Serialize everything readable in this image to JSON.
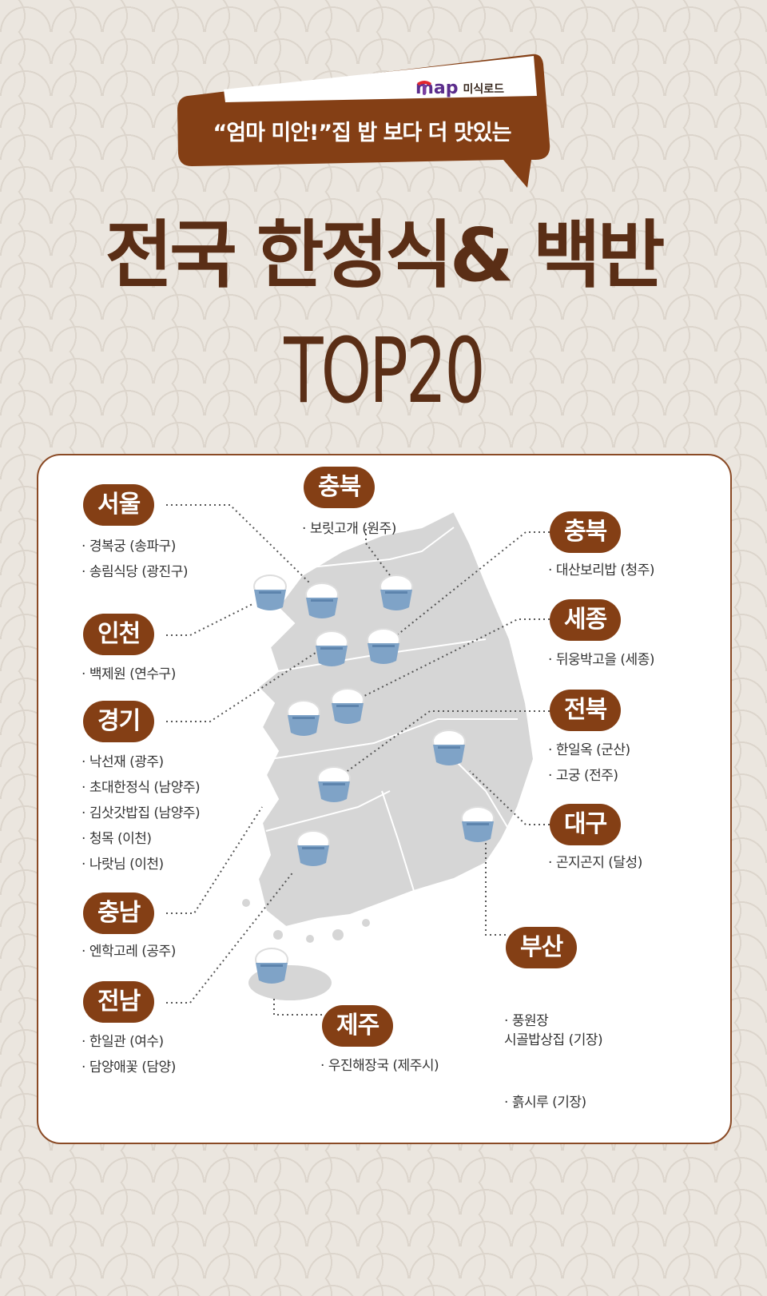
{
  "header": {
    "brand_name": "map",
    "brand_sub": "미식로드",
    "tagline": "“엄마 미안!”집 밥 보다 더 맛있는",
    "title": "전국 한정식& 백반",
    "subtitle": "TOP20"
  },
  "colors": {
    "brown": "#843f15",
    "title_brown": "#5a2e16",
    "bowl_blue": "#7fa3c7",
    "map_gray": "#d6d6d6"
  },
  "regions": {
    "seoul": {
      "name": "서울",
      "items": [
        "경복궁 (송파구)",
        "송림식당 (광진구)"
      ]
    },
    "incheon": {
      "name": "인천",
      "items": [
        "백제원 (연수구)"
      ]
    },
    "gyeonggi": {
      "name": "경기",
      "items": [
        "낙선재 (광주)",
        "초대한정식 (남양주)",
        "김삿갓밥집 (남양주)",
        "청목 (이천)",
        "나랏님 (이천)"
      ]
    },
    "chungnam": {
      "name": "충남",
      "items": [
        "엔학고레 (공주)"
      ]
    },
    "jeonnam": {
      "name": "전남",
      "items": [
        "한일관 (여수)",
        "담양애꽃 (담양)"
      ]
    },
    "gangwon": {
      "name": "충북",
      "items": [
        "보릿고개 (원주)"
      ]
    },
    "chungbuk": {
      "name": "충북",
      "items": [
        "대산보리밥 (청주)"
      ]
    },
    "sejong": {
      "name": "세종",
      "items": [
        "뒤웅박고을 (세종)"
      ]
    },
    "jeonbuk": {
      "name": "전북",
      "items": [
        "한일옥 (군산)",
        "고궁 (전주)"
      ]
    },
    "daegu": {
      "name": "대구",
      "items": [
        "곤지곤지 (달성)"
      ]
    },
    "busan": {
      "name": "부산",
      "items": [
        "풍원장\n시골밥상집 (기장)",
        "흙시루 (기장)"
      ]
    },
    "jeju": {
      "name": "제주",
      "items": [
        "우진해장국 (제주시)"
      ]
    }
  }
}
